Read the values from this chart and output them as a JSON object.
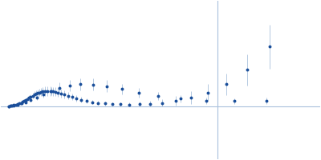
{
  "background_color": "#ffffff",
  "data_color": "#1A4E9A",
  "error_color": "#A8C0DC",
  "point_size": 1.8,
  "elinewidth": 0.6,
  "xlim": [
    0.0,
    0.38
  ],
  "ylim": [
    -0.55,
    1.1
  ],
  "hline_y": 0.0,
  "hline_color": "#A8C0DC",
  "hline_lw": 0.8,
  "vline_x": 0.258,
  "vline_color": "#A8C0DC",
  "vline_lw": 0.8,
  "q1": [
    0.01,
    0.012,
    0.014,
    0.016,
    0.018,
    0.02,
    0.022,
    0.024,
    0.026,
    0.028,
    0.03,
    0.032,
    0.034,
    0.036,
    0.038,
    0.04,
    0.042,
    0.044,
    0.046,
    0.048,
    0.05,
    0.053,
    0.056,
    0.059,
    0.062,
    0.065,
    0.068,
    0.072,
    0.076,
    0.08,
    0.085,
    0.09,
    0.096,
    0.102,
    0.109,
    0.116,
    0.124,
    0.133,
    0.142,
    0.153,
    0.165,
    0.178,
    0.192,
    0.208,
    0.226,
    0.246,
    0.268,
    0.293,
    0.32
  ],
  "k1": [
    0.005,
    0.007,
    0.01,
    0.014,
    0.018,
    0.024,
    0.031,
    0.038,
    0.047,
    0.057,
    0.068,
    0.079,
    0.09,
    0.101,
    0.112,
    0.122,
    0.131,
    0.139,
    0.146,
    0.152,
    0.156,
    0.159,
    0.16,
    0.159,
    0.156,
    0.151,
    0.145,
    0.136,
    0.125,
    0.113,
    0.098,
    0.084,
    0.07,
    0.058,
    0.046,
    0.037,
    0.03,
    0.025,
    0.022,
    0.021,
    0.022,
    0.028,
    0.038,
    0.058,
    0.09,
    0.145,
    0.23,
    0.38,
    0.62
  ],
  "e1": [
    0.002,
    0.003,
    0.004,
    0.005,
    0.006,
    0.007,
    0.009,
    0.011,
    0.013,
    0.015,
    0.018,
    0.021,
    0.024,
    0.027,
    0.03,
    0.033,
    0.036,
    0.039,
    0.041,
    0.043,
    0.045,
    0.047,
    0.048,
    0.048,
    0.047,
    0.046,
    0.044,
    0.042,
    0.039,
    0.036,
    0.033,
    0.03,
    0.027,
    0.024,
    0.022,
    0.02,
    0.019,
    0.019,
    0.02,
    0.022,
    0.025,
    0.03,
    0.038,
    0.05,
    0.065,
    0.085,
    0.115,
    0.16,
    0.23
  ],
  "q2": [
    0.01,
    0.013,
    0.016,
    0.02,
    0.025,
    0.03,
    0.036,
    0.043,
    0.051,
    0.06,
    0.07,
    0.082,
    0.095,
    0.11,
    0.126,
    0.144,
    0.164,
    0.187,
    0.214,
    0.244,
    0.278,
    0.316
  ],
  "k2": [
    0.004,
    0.007,
    0.012,
    0.019,
    0.03,
    0.046,
    0.067,
    0.094,
    0.126,
    0.16,
    0.193,
    0.218,
    0.23,
    0.228,
    0.21,
    0.18,
    0.145,
    0.11,
    0.08,
    0.062,
    0.055,
    0.06
  ],
  "e2": [
    0.003,
    0.004,
    0.006,
    0.008,
    0.011,
    0.015,
    0.02,
    0.027,
    0.035,
    0.044,
    0.053,
    0.06,
    0.064,
    0.065,
    0.062,
    0.057,
    0.051,
    0.044,
    0.038,
    0.034,
    0.033,
    0.035
  ]
}
